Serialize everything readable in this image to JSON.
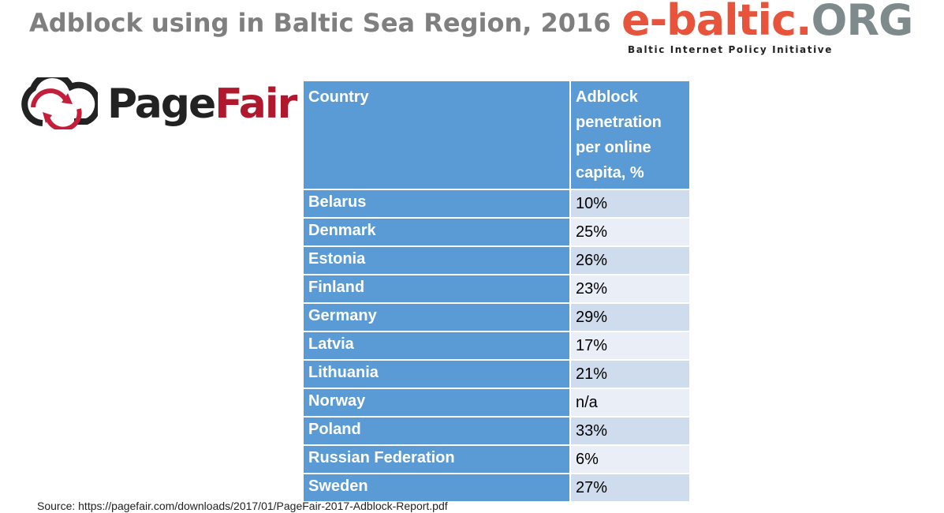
{
  "header": {
    "title": "Adblock using in Baltic Sea Region, 2016",
    "brand": {
      "name_main": "e-baltic.",
      "name_suffix": "ORG",
      "tagline": "Baltic Internet Policy Initiative"
    },
    "partner": {
      "name_first": "Page",
      "name_second": "Fair"
    }
  },
  "table": {
    "columns": [
      "Country",
      "Adblock penetration per online capita, %"
    ],
    "rows": [
      [
        "Belarus",
        "10%"
      ],
      [
        "Denmark",
        "25%"
      ],
      [
        "Estonia",
        "26%"
      ],
      [
        "Finland",
        "23%"
      ],
      [
        "Germany",
        "29%"
      ],
      [
        "Latvia",
        "17%"
      ],
      [
        "Lithuania",
        "21%"
      ],
      [
        "Norway",
        "n/a"
      ],
      [
        "Poland",
        "33%"
      ],
      [
        "Russian Federation",
        "6%"
      ],
      [
        "Sweden",
        "27%"
      ]
    ]
  },
  "footer": {
    "source": "Source: https://pagefair.com/downloads/2017/01/PageFair-2017-Adblock-Report.pdf"
  }
}
